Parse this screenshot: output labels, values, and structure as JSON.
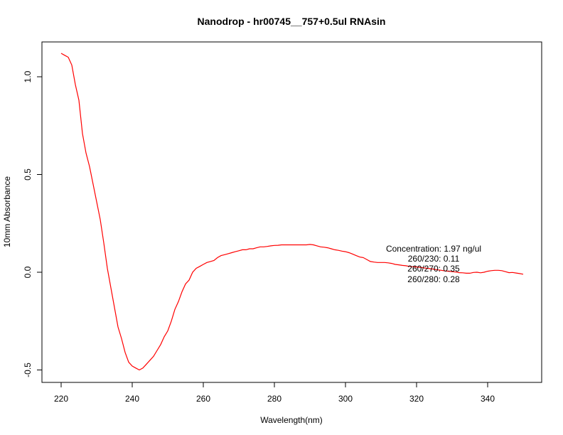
{
  "chart_data": {
    "type": "line",
    "title": "Nanodrop - hr00745__757+0.5ul RNAsin",
    "xlabel": "Wavelength(nm)",
    "ylabel": "10mm Absorbance",
    "xlim": [
      220,
      350
    ],
    "ylim": [
      -0.5,
      1.13
    ],
    "x_ticks": [
      220,
      240,
      260,
      280,
      300,
      320,
      340
    ],
    "x_tick_labels": [
      "220",
      "240",
      "260",
      "280",
      "300",
      "320",
      "340"
    ],
    "y_ticks": [
      -0.5,
      0.0,
      0.5,
      1.0
    ],
    "y_tick_labels": [
      "-0.5",
      "0.0",
      "0.5",
      "1.0"
    ],
    "grid": false,
    "annotations": [
      "Concentration: 1.97 ng/ul",
      "260/230: 0.11",
      "260/270: 0.35",
      "260/280: 0.28"
    ],
    "series": [
      {
        "color": "#ff0000",
        "x": [
          220,
          221,
          222,
          223,
          224,
          225,
          226,
          227,
          228,
          229,
          230,
          231,
          232,
          233,
          234,
          235,
          236,
          237,
          238,
          239,
          240,
          241,
          242,
          243,
          244,
          245,
          246,
          247,
          248,
          249,
          250,
          251,
          252,
          253,
          254,
          255,
          256,
          257,
          258,
          259,
          260,
          261,
          262,
          263,
          264,
          265,
          266,
          267,
          268,
          269,
          270,
          271,
          272,
          273,
          274,
          275,
          276,
          277,
          278,
          279,
          280,
          281,
          282,
          283,
          284,
          285,
          286,
          287,
          288,
          289,
          290,
          291,
          292,
          293,
          294,
          295,
          296,
          297,
          298,
          299,
          300,
          301,
          302,
          303,
          304,
          305,
          306,
          307,
          308,
          309,
          310,
          311,
          312,
          313,
          314,
          315,
          316,
          317,
          318,
          319,
          320,
          321,
          322,
          323,
          324,
          325,
          326,
          327,
          328,
          329,
          330,
          331,
          332,
          333,
          334,
          335,
          336,
          337,
          338,
          339,
          340,
          341,
          342,
          343,
          344,
          345,
          346,
          347,
          348,
          349,
          350
        ],
        "y": [
          1.12,
          1.11,
          1.1,
          1.06,
          0.96,
          0.88,
          0.71,
          0.61,
          0.54,
          0.45,
          0.36,
          0.27,
          0.15,
          0.02,
          -0.08,
          -0.18,
          -0.28,
          -0.34,
          -0.41,
          -0.46,
          -0.48,
          -0.49,
          -0.5,
          -0.49,
          -0.47,
          -0.45,
          -0.43,
          -0.4,
          -0.37,
          -0.33,
          -0.3,
          -0.25,
          -0.19,
          -0.15,
          -0.1,
          -0.06,
          -0.04,
          0.0,
          0.02,
          0.03,
          0.04,
          0.05,
          0.055,
          0.06,
          0.075,
          0.085,
          0.09,
          0.095,
          0.1,
          0.105,
          0.11,
          0.115,
          0.115,
          0.12,
          0.12,
          0.125,
          0.13,
          0.13,
          0.132,
          0.135,
          0.137,
          0.138,
          0.14,
          0.14,
          0.14,
          0.14,
          0.14,
          0.14,
          0.14,
          0.14,
          0.142,
          0.14,
          0.135,
          0.13,
          0.128,
          0.125,
          0.12,
          0.115,
          0.112,
          0.108,
          0.105,
          0.1,
          0.093,
          0.085,
          0.078,
          0.075,
          0.065,
          0.055,
          0.052,
          0.05,
          0.05,
          0.05,
          0.048,
          0.045,
          0.04,
          0.038,
          0.035,
          0.033,
          0.03,
          0.028,
          0.027,
          0.025,
          0.022,
          0.02,
          0.018,
          0.015,
          0.012,
          0.01,
          0.007,
          0.005,
          0.003,
          0.001,
          -0.002,
          -0.003,
          -0.005,
          -0.005,
          -0.001,
          0.0,
          -0.003,
          0.0,
          0.005,
          0.008,
          0.01,
          0.01,
          0.008,
          0.003,
          -0.002,
          -0.001,
          -0.004,
          -0.007,
          -0.01
        ]
      }
    ]
  }
}
